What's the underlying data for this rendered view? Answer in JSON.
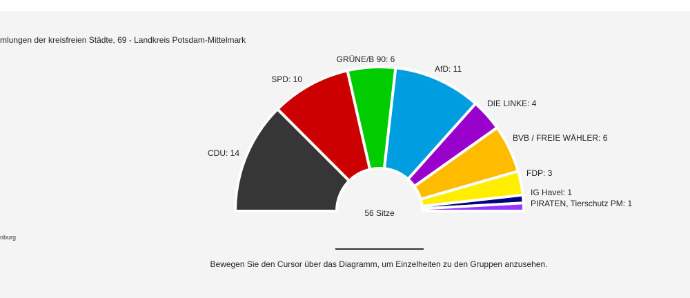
{
  "header": {
    "title": "mlungen der kreisfreien Städte, 69 - Landkreis Potsdam-Mittelmark"
  },
  "source": {
    "text": "nburg"
  },
  "hint": {
    "text": "Bewegen Sie den Cursor über das Diagramm, um Einzelheiten zu den Gruppen anzusehen."
  },
  "chart_data": {
    "type": "pie",
    "total_label": "56 Sitze",
    "total": 56,
    "series": [
      {
        "name": "CDU",
        "value": 14,
        "label": "CDU: 14",
        "color": "#363636"
      },
      {
        "name": "SPD",
        "value": 10,
        "label": "SPD: 10",
        "color": "#cc0000"
      },
      {
        "name": "GRÜNE/B 90",
        "value": 6,
        "label": "GRÜNE/B 90: 6",
        "color": "#00cc00"
      },
      {
        "name": "AfD",
        "value": 11,
        "label": "AfD: 11",
        "color": "#009ee0"
      },
      {
        "name": "DIE LINKE",
        "value": 4,
        "label": "DIE LINKE: 4",
        "color": "#9900cc"
      },
      {
        "name": "BVB / FREIE WÄHLER",
        "value": 6,
        "label": "BVB / FREIE WÄHLER: 6",
        "color": "#ffbb00"
      },
      {
        "name": "FDP",
        "value": 3,
        "label": "FDP: 3",
        "color": "#ffee00"
      },
      {
        "name": "IG Havel",
        "value": 1,
        "label": "IG Havel: 1",
        "color": "#000080"
      },
      {
        "name": "PIRATEN, Tierschutz PM",
        "value": 1,
        "label": "PIRATEN, Tierschutz PM: 1",
        "color": "#9933ff"
      }
    ]
  }
}
